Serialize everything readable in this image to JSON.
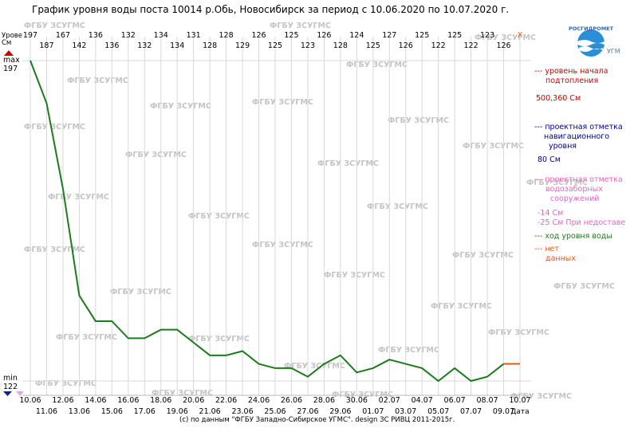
{
  "title": "График уровня воды поста 10014 р.Обь, Новосибирск за период с 10.06.2020 по 10.07.2020 г.",
  "credit": "(с) по данным \"ФГБУ Западно-Сибирское УГМС\". design ЗС РИВЦ 2011-2015г.",
  "logo_text": "РОСГИДРОМЕТ",
  "logo_text2": "УГМС",
  "watermark": "ФГБУ ЗСУГМС",
  "y_label_top": "Урове",
  "y_label_unit": "См",
  "y_max_label": "max",
  "y_min_label": "min",
  "x_axis_label": "Дата",
  "x_marker": "x",
  "colors": {
    "line": "#1d7a1d",
    "nodata": "#e05a1a",
    "flood": "#cc0000",
    "navigation": "#00008b",
    "intake": "#e066c0",
    "grid": "#d8d8d8",
    "top_value": "#000000"
  },
  "legend": {
    "flood_dash": "---",
    "flood_label1": "уровень начала",
    "flood_label2": "подтопления",
    "flood_value": "500,360 См",
    "nav_dash": "---",
    "nav_label1": "проектная отметка",
    "nav_label2": "навигационного",
    "nav_label3": "уровня",
    "nav_value": "80 См",
    "intake_dash": "---",
    "intake_label1": "проектная отметка",
    "intake_label2": "водозаборных",
    "intake_label3": "сооружений",
    "intake_value1": "-14 См",
    "intake_value2": "-25 См При недоставе",
    "level_dash": "---",
    "level_label": "ход уровня воды",
    "nodata_dash": "---",
    "nodata_label1": "нет",
    "nodata_label2": "данных"
  },
  "chart_data": {
    "type": "line",
    "title": "График уровня воды поста 10014 р.Обь, Новосибирск за период с 10.06.2020 по 10.07.2020 г.",
    "xlabel": "Дата",
    "ylabel": "Урове См",
    "ylim": [
      122,
      197
    ],
    "x": [
      "10.06",
      "11.06",
      "12.06",
      "13.06",
      "14.06",
      "15.06",
      "16.06",
      "17.06",
      "18.06",
      "19.06",
      "20.06",
      "21.06",
      "22.06",
      "23.06",
      "24.06",
      "25.06",
      "26.06",
      "27.06",
      "28.06",
      "29.06",
      "30.06",
      "01.07",
      "02.07",
      "03.07",
      "04.07",
      "05.07",
      "06.07",
      "07.07",
      "08.07",
      "09.07",
      "10.07"
    ],
    "series": [
      {
        "values": [
          197,
          187,
          167,
          142,
          136,
          136,
          132,
          132,
          134,
          134,
          131,
          128,
          128,
          129,
          126,
          125,
          125,
          123,
          126,
          128,
          124,
          125,
          127,
          126,
          125,
          122,
          125,
          122,
          123,
          126,
          null
        ]
      }
    ],
    "nodata_segment": [
      "09.07",
      "10.07"
    ],
    "y_max": 197,
    "y_min": 122,
    "grid": true
  }
}
